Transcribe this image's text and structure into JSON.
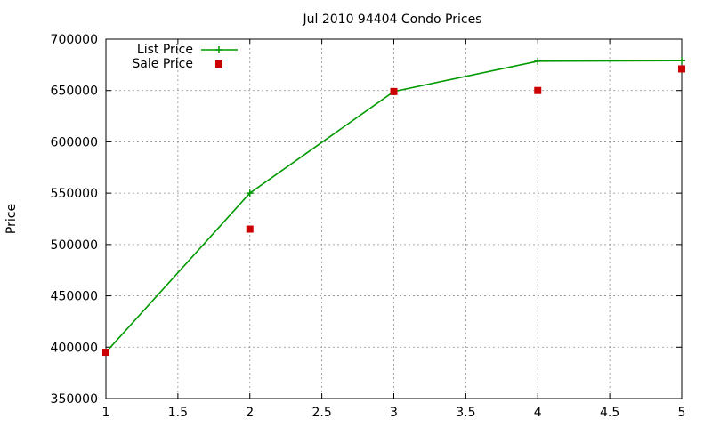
{
  "chart_data": {
    "type": "line",
    "title": "Jul 2010 94404 Condo Prices",
    "xlabel": "",
    "ylabel": "Price",
    "xlim": [
      1,
      5
    ],
    "ylim": [
      350000,
      700000
    ],
    "xticks": [
      "1",
      "1.5",
      "2",
      "2.5",
      "3",
      "3.5",
      "4",
      "4.5",
      "5"
    ],
    "yticks": [
      "350000",
      "400000",
      "450000",
      "500000",
      "550000",
      "600000",
      "650000",
      "700000"
    ],
    "grid": true,
    "legend": "top-left",
    "series": [
      {
        "name": "List Price",
        "style": "line+plus-marker",
        "color": "#009900",
        "x": [
          1,
          2,
          3,
          4,
          5
        ],
        "values": [
          395000,
          550000,
          649000,
          678500,
          679000
        ]
      },
      {
        "name": "Sale Price",
        "style": "square-marker",
        "color": "#cc0000",
        "x": [
          1,
          2,
          3,
          4,
          5
        ],
        "values": [
          395000,
          515000,
          649000,
          650000,
          671000
        ]
      }
    ]
  }
}
